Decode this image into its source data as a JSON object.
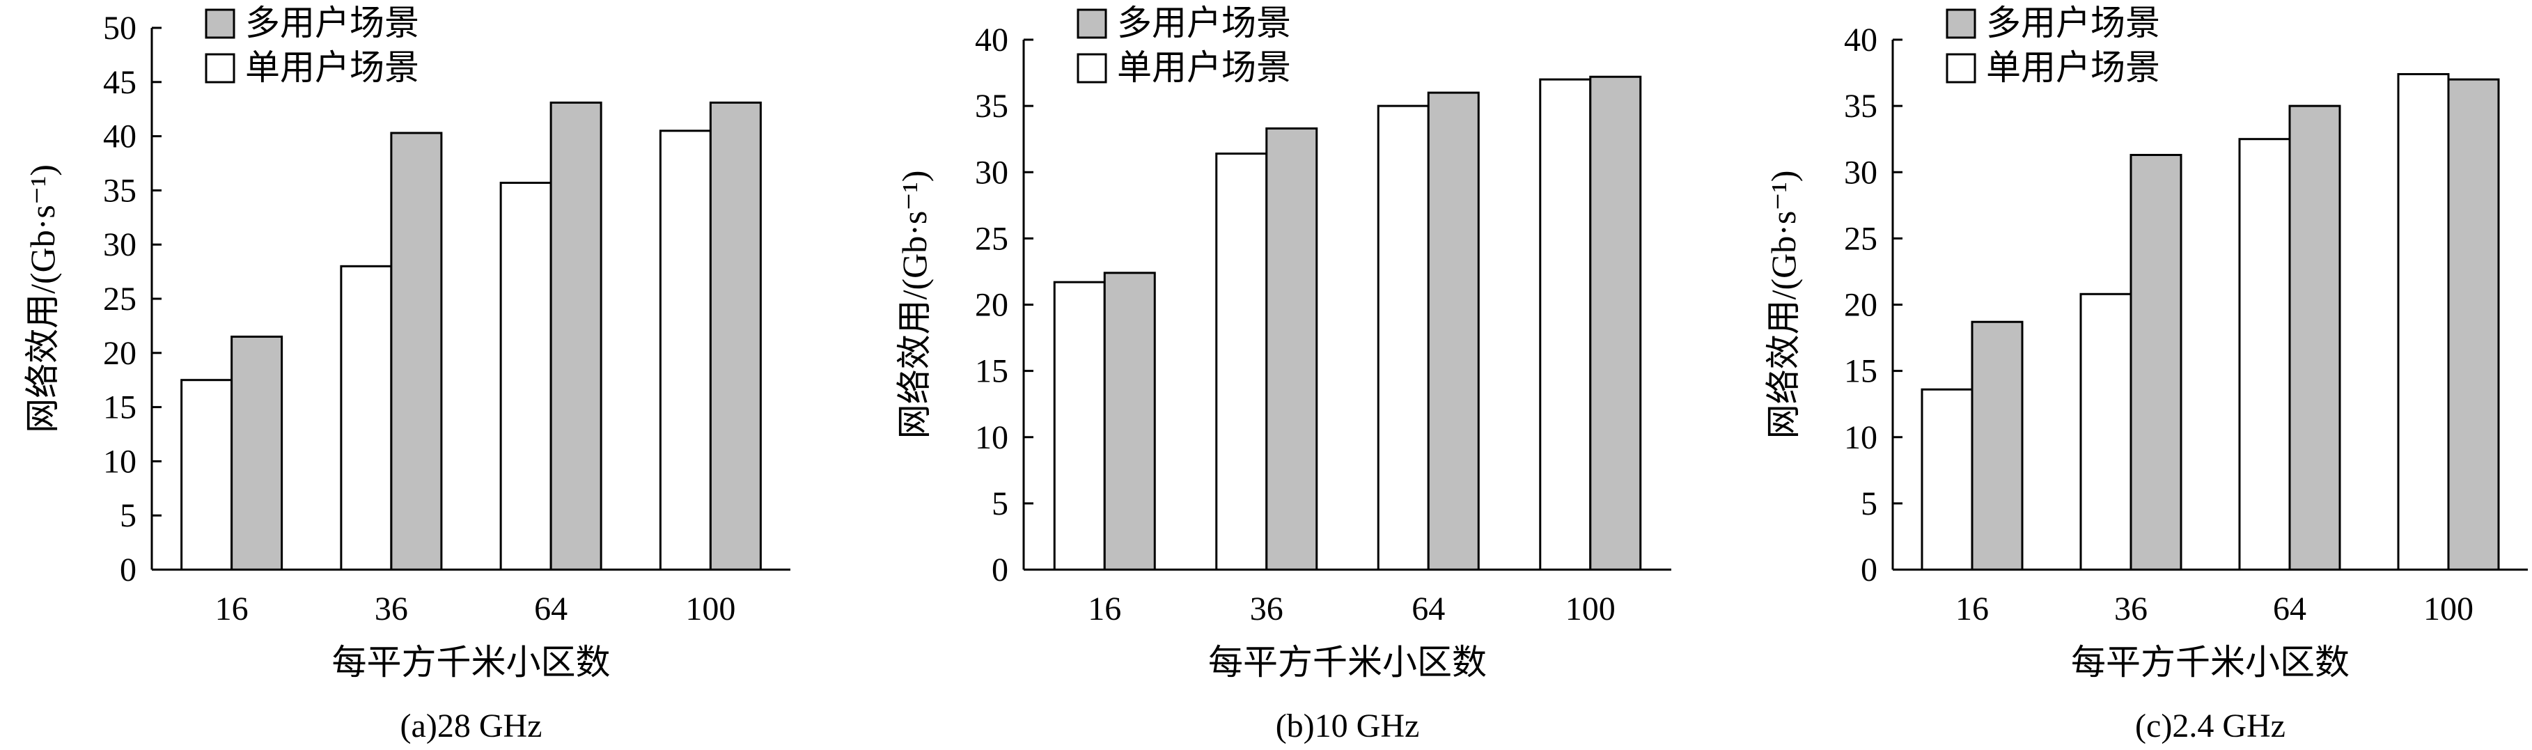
{
  "colors": {
    "multi_user": "#bfbfbf",
    "single_user": "#ffffff",
    "stroke": "#000000"
  },
  "legend": {
    "multi_user": "多用户场景",
    "single_user": "单用户场景"
  },
  "chart_data": [
    {
      "type": "bar",
      "caption": "(a)28 GHz",
      "xlabel": "每平方千米小区数",
      "ylabel": "网络效用/(Gb·s⁻¹)",
      "ylim": [
        0,
        50
      ],
      "yticks": [
        0,
        5,
        10,
        15,
        20,
        25,
        30,
        35,
        40,
        45,
        50
      ],
      "categories": [
        "16",
        "36",
        "64",
        "100"
      ],
      "legend_position": "top-left",
      "series": [
        {
          "name": "单用户场景",
          "values": [
            17.5,
            28,
            35.7,
            40.5
          ]
        },
        {
          "name": "多用户场景",
          "values": [
            21.5,
            40.3,
            43.1,
            43.1
          ]
        }
      ]
    },
    {
      "type": "bar",
      "caption": "(b)10 GHz",
      "xlabel": "每平方千米小区数",
      "ylabel": "网络效用/(Gb·s⁻¹)",
      "ylim": [
        0,
        40
      ],
      "yticks": [
        0,
        5,
        10,
        15,
        20,
        25,
        30,
        35,
        40
      ],
      "categories": [
        "16",
        "36",
        "64",
        "100"
      ],
      "legend_position": "top-left",
      "series": [
        {
          "name": "单用户场景",
          "values": [
            21.7,
            31.4,
            35,
            37
          ]
        },
        {
          "name": "多用户场景",
          "values": [
            22.4,
            33.3,
            36,
            37.2
          ]
        }
      ]
    },
    {
      "type": "bar",
      "caption": "(c)2.4 GHz",
      "xlabel": "每平方千米小区数",
      "ylabel": "网络效用/(Gb·s⁻¹)",
      "ylim": [
        0,
        40
      ],
      "yticks": [
        0,
        5,
        10,
        15,
        20,
        25,
        30,
        35,
        40
      ],
      "categories": [
        "16",
        "36",
        "64",
        "100"
      ],
      "legend_position": "top-left",
      "series": [
        {
          "name": "单用户场景",
          "values": [
            13.6,
            20.8,
            32.5,
            37.4
          ]
        },
        {
          "name": "多用户场景",
          "values": [
            18.7,
            31.3,
            35,
            37
          ]
        }
      ]
    }
  ]
}
